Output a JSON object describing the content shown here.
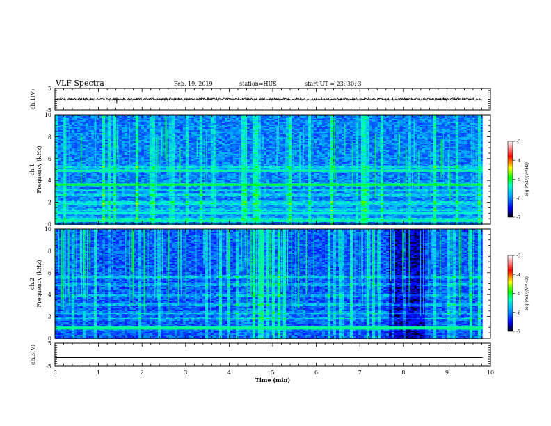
{
  "header": {
    "title": "VLF Spectra",
    "date": "Feb. 19, 2019",
    "station": "station=HUS",
    "start": "start  UT  =   23: 30: 3"
  },
  "chart_data": [
    {
      "type": "line",
      "id": "ch1-waveform",
      "ylabel": "ch.1(V)",
      "ylim": [
        -5,
        5
      ],
      "yticks": [
        "5",
        "-5"
      ],
      "xlim": [
        0,
        10
      ],
      "series": [
        {
          "x": [
            0,
            9.82
          ],
          "y": [
            0,
            0
          ]
        }
      ]
    },
    {
      "type": "heatmap",
      "id": "ch1-spectrogram",
      "ylabel": "ch.1\nFrequency  (kHz)",
      "ylim": [
        0,
        10
      ],
      "yticks": [
        "0",
        "2",
        "4",
        "6",
        "8",
        "10"
      ],
      "xlim": [
        0,
        10
      ],
      "data_extent_x": [
        0,
        9.82
      ],
      "colorbar": {
        "label": "log(PSD)(V²/Hz)",
        "range": [
          -7,
          -3
        ],
        "ticks": [
          "-3",
          "-4",
          "-5",
          "-6",
          "-7"
        ]
      },
      "bands_khz": [
        0.3,
        0.5,
        1.0,
        1.3,
        1.8,
        2.0,
        2.7,
        3.1,
        3.6,
        4.9,
        5.2
      ]
    },
    {
      "type": "heatmap",
      "id": "ch2-spectrogram",
      "ylabel": "ch.2\nFrequency  (kHz)",
      "ylim": [
        0,
        10
      ],
      "yticks": [
        "0",
        "2",
        "4",
        "6",
        "8",
        "10"
      ],
      "xlim": [
        0,
        10
      ],
      "data_extent_x": [
        0,
        9.82
      ],
      "colorbar": {
        "label": "log(PSD)(V²/Hz)",
        "range": [
          -7,
          -3
        ],
        "ticks": [
          "-3",
          "-4",
          "-5",
          "-6",
          "-7"
        ]
      },
      "bands_khz": [
        0.9,
        1.8,
        2.3,
        3.1,
        3.9,
        4.9,
        5.6
      ]
    },
    {
      "type": "line",
      "id": "ch3-waveform",
      "ylabel": "ch.3(V)",
      "ylim": [
        -5,
        5
      ],
      "yticks": [
        "5",
        "-5"
      ],
      "xlim": [
        0,
        10
      ],
      "xlabel": "Time  (min)",
      "xticks": [
        "0",
        "1",
        "2",
        "3",
        "4",
        "5",
        "6",
        "7",
        "8",
        "9",
        "10"
      ],
      "series": [
        {
          "x": [
            0,
            9.82
          ],
          "y": [
            -1.2,
            -1.2
          ]
        }
      ]
    }
  ]
}
